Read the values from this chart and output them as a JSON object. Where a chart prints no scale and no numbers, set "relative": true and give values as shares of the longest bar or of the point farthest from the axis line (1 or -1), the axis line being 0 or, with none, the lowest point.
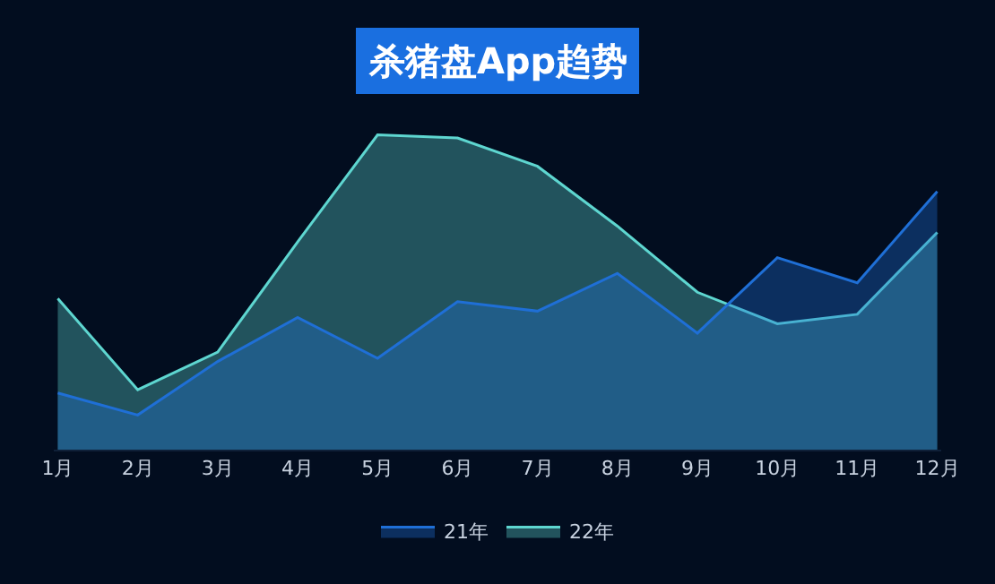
{
  "chart_data": {
    "type": "area",
    "title": "杀猪盘App趋势",
    "relative": true,
    "legend": "bottom",
    "grid": false,
    "marker": "none",
    "categories": [
      "1月",
      "2月",
      "3月",
      "4月",
      "5月",
      "6月",
      "7月",
      "8月",
      "9月",
      "10月",
      "11月",
      "12月"
    ],
    "series": [
      {
        "name": "22年",
        "color": "#5ed6d0",
        "values": [
          0.48,
          0.19,
          0.31,
          0.66,
          1,
          0.99,
          0.9,
          0.71,
          0.5,
          0.4,
          0.43,
          0.69
        ]
      },
      {
        "name": "21年",
        "color": "#1f6fd6",
        "values": [
          0.18,
          0.11,
          0.28,
          0.42,
          0.29,
          0.47,
          0.44,
          0.56,
          0.37,
          0.61,
          0.53,
          0.82
        ]
      }
    ]
  }
}
